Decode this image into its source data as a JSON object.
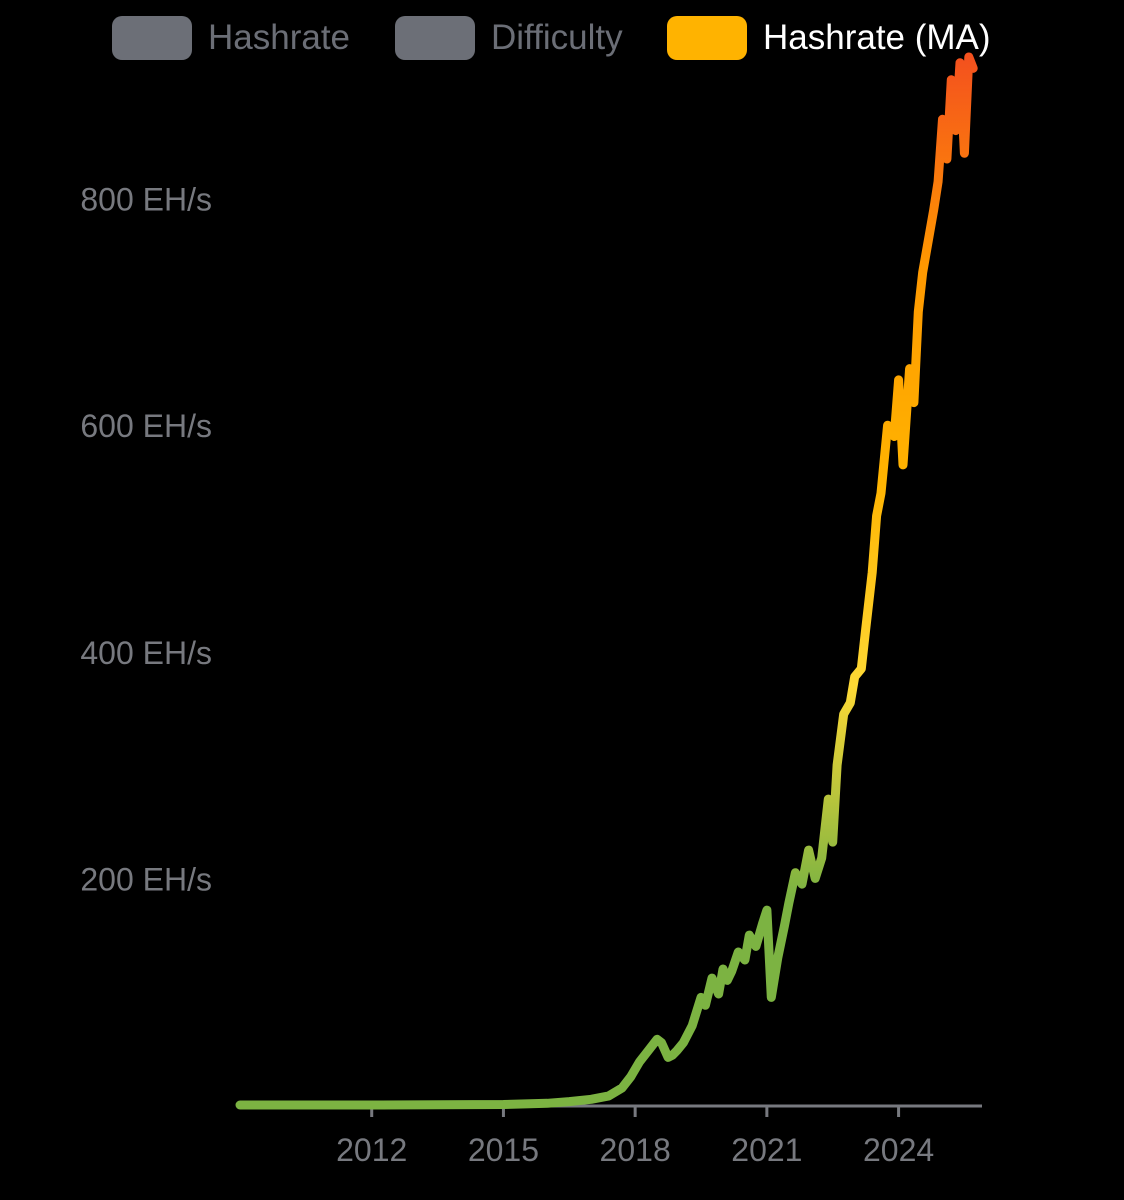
{
  "legend": [
    {
      "label": "Hashrate",
      "color": "#6c6f77",
      "active": false
    },
    {
      "label": "Difficulty",
      "color": "#6c6f77",
      "active": false
    },
    {
      "label": "Hashrate (MA)",
      "color": "#ffb300",
      "active": true
    }
  ],
  "chart_data": {
    "type": "line",
    "title": "",
    "xlabel": "",
    "ylabel": "",
    "x_ticks": [
      "2012",
      "2015",
      "2018",
      "2021",
      "2024"
    ],
    "y_ticks": [
      "200 EH/s",
      "400 EH/s",
      "600 EH/s",
      "800 EH/s"
    ],
    "xlim": [
      2009.0,
      2025.9
    ],
    "ylim": [
      0,
      940
    ],
    "grid": false,
    "line_gradient": [
      "#7cb342",
      "#7cb342",
      "#fdd835",
      "#ffb300",
      "#ff9800",
      "#f4511e"
    ],
    "series": [
      {
        "name": "Hashrate (MA)",
        "x": [
          2009.0,
          2012.0,
          2015.0,
          2016.0,
          2016.5,
          2017.0,
          2017.4,
          2017.7,
          2017.9,
          2018.1,
          2018.3,
          2018.5,
          2018.6,
          2018.75,
          2018.85,
          2018.95,
          2019.1,
          2019.3,
          2019.5,
          2019.6,
          2019.75,
          2019.9,
          2020.0,
          2020.1,
          2020.2,
          2020.35,
          2020.5,
          2020.6,
          2020.75,
          2020.9,
          2021.0,
          2021.1,
          2021.25,
          2021.4,
          2021.5,
          2021.65,
          2021.8,
          2021.95,
          2022.1,
          2022.25,
          2022.4,
          2022.5,
          2022.6,
          2022.75,
          2022.9,
          2023.0,
          2023.15,
          2023.25,
          2023.4,
          2023.5,
          2023.6,
          2023.75,
          2023.9,
          2024.0,
          2024.1,
          2024.25,
          2024.35,
          2024.45,
          2024.55,
          2024.7,
          2024.8,
          2024.9,
          2025.0,
          2025.1,
          2025.2,
          2025.3,
          2025.4,
          2025.5,
          2025.6,
          2025.7
        ],
        "y": [
          0,
          0,
          0.4,
          1.5,
          3,
          5,
          8,
          15,
          25,
          38,
          48,
          58,
          55,
          42,
          44,
          48,
          55,
          70,
          95,
          88,
          112,
          98,
          120,
          110,
          118,
          135,
          128,
          150,
          140,
          160,
          172,
          95,
          130,
          158,
          178,
          205,
          195,
          225,
          200,
          218,
          270,
          232,
          300,
          345,
          355,
          378,
          385,
          420,
          470,
          520,
          540,
          600,
          590,
          640,
          565,
          650,
          620,
          700,
          735,
          768,
          790,
          815,
          870,
          835,
          905,
          860,
          920,
          840,
          925,
          915
        ]
      }
    ]
  }
}
